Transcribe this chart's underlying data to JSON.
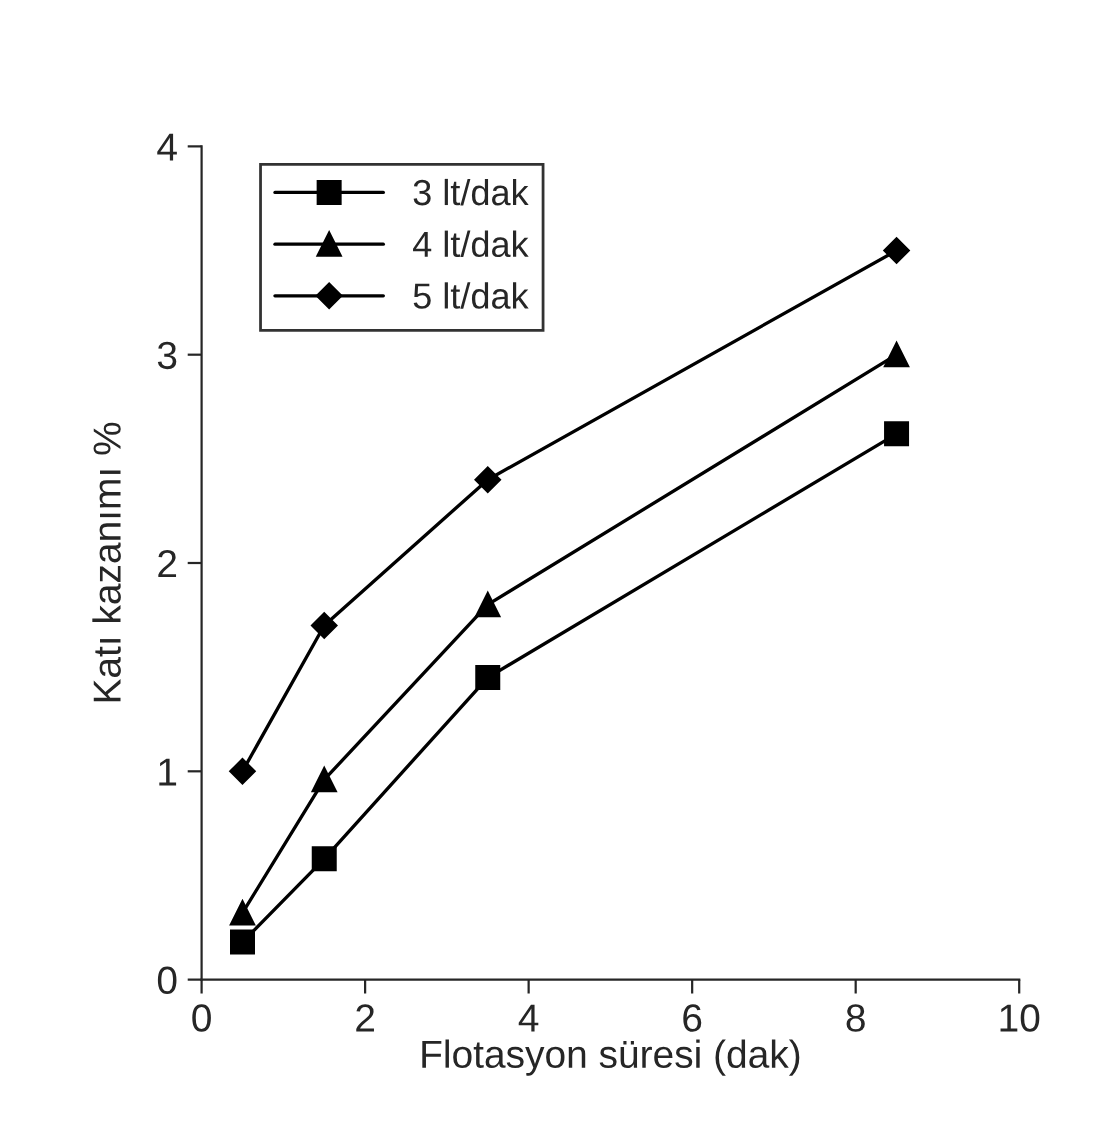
{
  "chart_data": {
    "type": "line",
    "xlabel": "Flotasyon süresi (dak)",
    "ylabel": "Katı kazanımı %",
    "x": [
      0.5,
      1.5,
      3.5,
      8.5
    ],
    "series": [
      {
        "name": "3 lt/dak",
        "color": "#000000",
        "marker": "square",
        "values": [
          0.18,
          0.58,
          1.45,
          2.62
        ]
      },
      {
        "name": "4 lt/dak",
        "color": "#000000",
        "marker": "triangle",
        "values": [
          0.32,
          0.96,
          1.8,
          3.0
        ]
      },
      {
        "name": "5 lt/dak",
        "color": "#000000",
        "marker": "diamond",
        "values": [
          1.0,
          1.7,
          2.4,
          3.5
        ]
      }
    ],
    "xlim": [
      0,
      10
    ],
    "xticks": [
      0,
      2,
      4,
      6,
      8,
      10
    ],
    "ylim": [
      0,
      4
    ],
    "yticks": [
      0,
      1,
      2,
      3,
      4
    ],
    "grid": false,
    "legend": "top left",
    "line_style": "solid"
  }
}
